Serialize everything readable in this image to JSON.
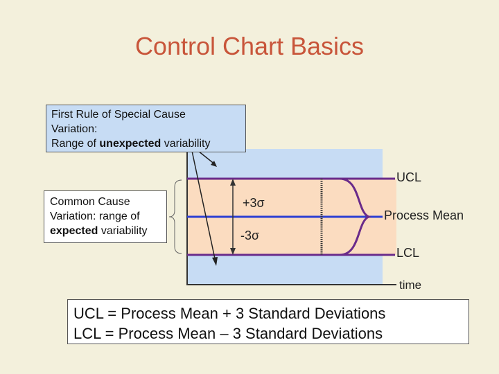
{
  "title": "Control Chart Basics",
  "rule_box": {
    "line1": "First Rule of Special Cause",
    "line2": "Variation:",
    "line3_pre": "Range of ",
    "line3_bold": "unexpected",
    "line3_post": " variability"
  },
  "common_box": {
    "line1": "Common Cause",
    "line2": "Variation: range of",
    "line3_bold": "expected",
    "line3_post": " variability"
  },
  "labels": {
    "ucl": "UCL",
    "mean": "Process Mean",
    "lcl": "LCL",
    "time": "time",
    "plus3": "+3σ",
    "minus3": "-3σ"
  },
  "formula": {
    "line1": "UCL = Process Mean + 3 Standard Deviations",
    "line2": "LCL = Process Mean – 3 Standard Deviations"
  },
  "colors": {
    "title": "#c8553a",
    "upper_band": "#c7dcf4",
    "inner_band": "#fbdcc0",
    "limit_line": "#6a2b8a",
    "mean_line": "#2b3ed4"
  }
}
